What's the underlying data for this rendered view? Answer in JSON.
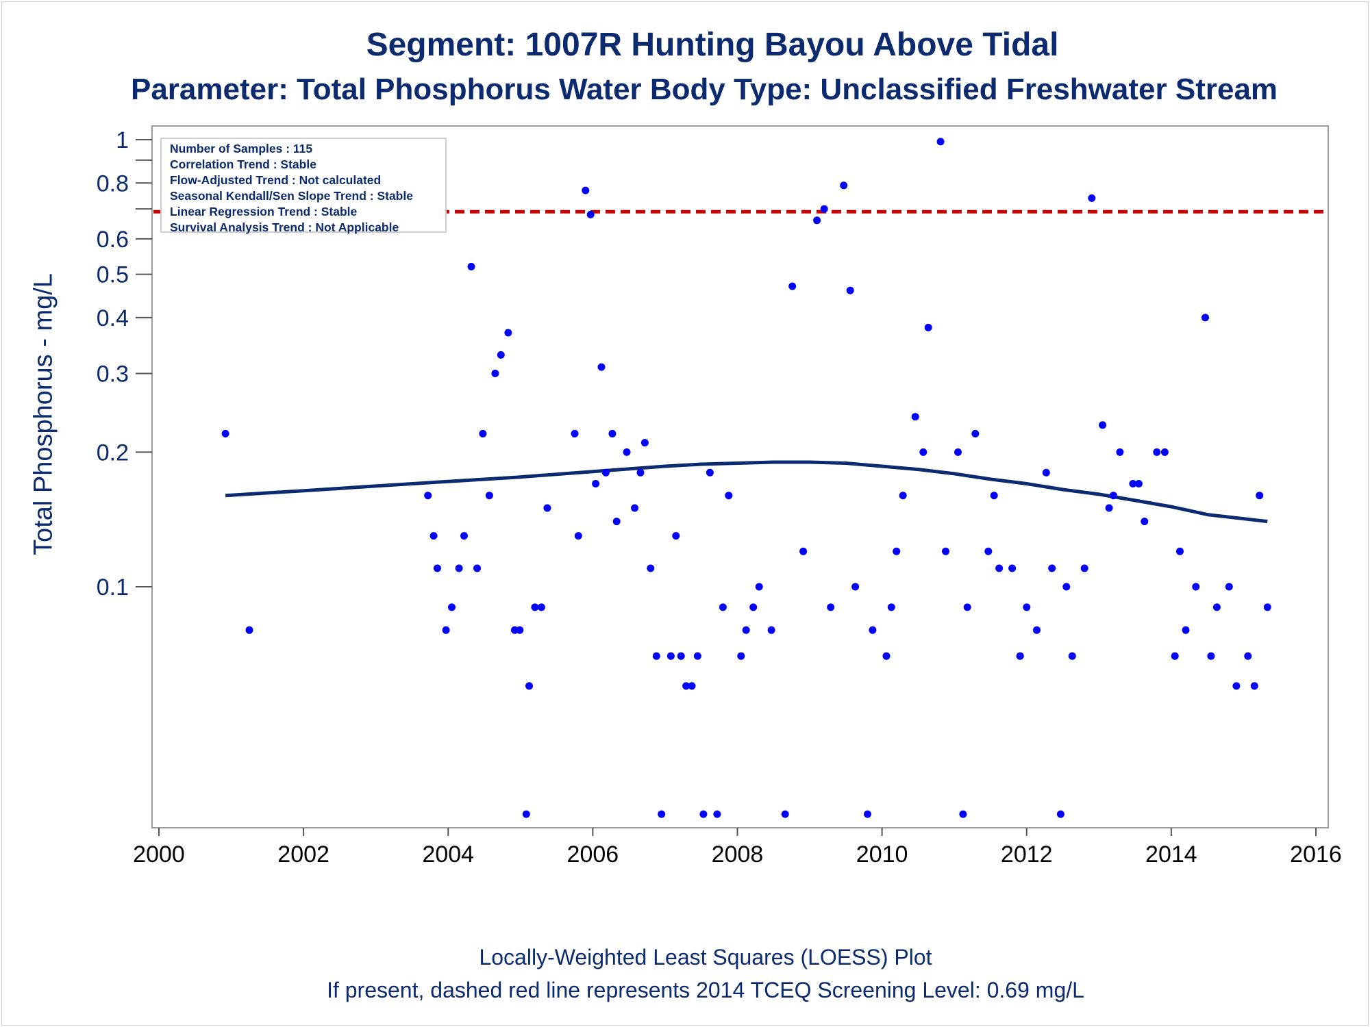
{
  "title": "Segment: 1007R  Hunting Bayou Above Tidal",
  "subtitle": "Parameter: Total Phosphorus   Water Body Type: Unclassified Freshwater Stream",
  "footnote1": "Locally-Weighted Least Squares (LOESS) Plot",
  "footnote2": "If present, dashed red line represents 2014 TCEQ Screening Level: 0.69 mg/L",
  "stats": [
    "Number of Samples : 115",
    "Correlation Trend : Stable",
    "Flow-Adjusted Trend : Not calculated",
    "Seasonal Kendall/Sen Slope Trend : Stable",
    "Linear Regression Trend : Stable",
    "Survival Analysis Trend : Not Applicable"
  ],
  "chart_data": {
    "type": "scatter",
    "title": "Segment: 1007R  Hunting Bayou Above Tidal",
    "subtitle": "Parameter: Total Phosphorus   Water Body Type: Unclassified Freshwater Stream",
    "xlabel": "",
    "ylabel": "Total Phosphorus - mg/L",
    "xlim": [
      2000,
      2016
    ],
    "ylim": [
      0.03,
      1.05
    ],
    "yscale": "log",
    "x_ticks": [
      2000,
      2002,
      2004,
      2006,
      2008,
      2010,
      2012,
      2014,
      2016
    ],
    "y_ticks": [
      0.1,
      0.2,
      0.3,
      0.4,
      0.5,
      0.6,
      0.8,
      1
    ],
    "y_minor_ticks": [
      0.7,
      0.9
    ],
    "legend": "top-left",
    "grid": false,
    "colors": {
      "points": "#0000ff",
      "loess": "#0b2a6f",
      "screening": "#cc0000",
      "text": "#0b2a6f"
    },
    "screening_level": 0.69,
    "points": [
      [
        2000.92,
        0.22
      ],
      [
        2001.25,
        0.08
      ],
      [
        2003.72,
        0.16
      ],
      [
        2003.8,
        0.13
      ],
      [
        2003.85,
        0.11
      ],
      [
        2003.97,
        0.08
      ],
      [
        2004.05,
        0.09
      ],
      [
        2004.15,
        0.11
      ],
      [
        2004.22,
        0.13
      ],
      [
        2004.32,
        0.52
      ],
      [
        2004.4,
        0.11
      ],
      [
        2004.48,
        0.22
      ],
      [
        2004.57,
        0.16
      ],
      [
        2004.65,
        0.3
      ],
      [
        2004.73,
        0.33
      ],
      [
        2004.83,
        0.37
      ],
      [
        2004.92,
        0.08
      ],
      [
        2004.99,
        0.08
      ],
      [
        2005.08,
        0.031
      ],
      [
        2005.12,
        0.06
      ],
      [
        2005.2,
        0.09
      ],
      [
        2005.29,
        0.09
      ],
      [
        2005.37,
        0.15
      ],
      [
        2005.75,
        0.22
      ],
      [
        2005.8,
        0.13
      ],
      [
        2005.9,
        0.77
      ],
      [
        2005.97,
        0.68
      ],
      [
        2006.04,
        0.17
      ],
      [
        2006.12,
        0.31
      ],
      [
        2006.18,
        0.18
      ],
      [
        2006.27,
        0.22
      ],
      [
        2006.33,
        0.14
      ],
      [
        2006.47,
        0.2
      ],
      [
        2006.58,
        0.15
      ],
      [
        2006.66,
        0.18
      ],
      [
        2006.72,
        0.21
      ],
      [
        2006.8,
        0.11
      ],
      [
        2006.88,
        0.07
      ],
      [
        2006.95,
        0.031
      ],
      [
        2007.08,
        0.07
      ],
      [
        2007.15,
        0.13
      ],
      [
        2007.22,
        0.07
      ],
      [
        2007.29,
        0.06
      ],
      [
        2007.37,
        0.06
      ],
      [
        2007.45,
        0.07
      ],
      [
        2007.53,
        0.031
      ],
      [
        2007.62,
        0.18
      ],
      [
        2007.72,
        0.031
      ],
      [
        2007.8,
        0.09
      ],
      [
        2007.88,
        0.16
      ],
      [
        2008.05,
        0.07
      ],
      [
        2008.12,
        0.08
      ],
      [
        2008.22,
        0.09
      ],
      [
        2008.3,
        0.1
      ],
      [
        2008.47,
        0.08
      ],
      [
        2008.66,
        0.031
      ],
      [
        2008.76,
        0.47
      ],
      [
        2008.91,
        0.12
      ],
      [
        2009.1,
        0.66
      ],
      [
        2009.2,
        0.7
      ],
      [
        2009.29,
        0.09
      ],
      [
        2009.47,
        0.79
      ],
      [
        2009.56,
        0.46
      ],
      [
        2009.63,
        0.1
      ],
      [
        2009.8,
        0.031
      ],
      [
        2009.87,
        0.08
      ],
      [
        2010.06,
        0.07
      ],
      [
        2010.13,
        0.09
      ],
      [
        2010.2,
        0.12
      ],
      [
        2010.29,
        0.16
      ],
      [
        2010.46,
        0.24
      ],
      [
        2010.57,
        0.2
      ],
      [
        2010.64,
        0.38
      ],
      [
        2010.81,
        0.99
      ],
      [
        2010.88,
        0.12
      ],
      [
        2011.05,
        0.2
      ],
      [
        2011.12,
        0.031
      ],
      [
        2011.18,
        0.09
      ],
      [
        2011.29,
        0.22
      ],
      [
        2011.47,
        0.12
      ],
      [
        2011.55,
        0.16
      ],
      [
        2011.62,
        0.11
      ],
      [
        2011.8,
        0.11
      ],
      [
        2011.91,
        0.07
      ],
      [
        2012.0,
        0.09
      ],
      [
        2012.14,
        0.08
      ],
      [
        2012.27,
        0.18
      ],
      [
        2012.35,
        0.11
      ],
      [
        2012.47,
        0.031
      ],
      [
        2012.55,
        0.1
      ],
      [
        2012.63,
        0.07
      ],
      [
        2012.8,
        0.11
      ],
      [
        2012.9,
        0.74
      ],
      [
        2013.05,
        0.23
      ],
      [
        2013.14,
        0.15
      ],
      [
        2013.2,
        0.16
      ],
      [
        2013.29,
        0.2
      ],
      [
        2013.47,
        0.17
      ],
      [
        2013.55,
        0.17
      ],
      [
        2013.63,
        0.14
      ],
      [
        2013.8,
        0.2
      ],
      [
        2013.91,
        0.2
      ],
      [
        2014.05,
        0.07
      ],
      [
        2014.12,
        0.12
      ],
      [
        2014.2,
        0.08
      ],
      [
        2014.34,
        0.1
      ],
      [
        2014.47,
        0.4
      ],
      [
        2014.55,
        0.07
      ],
      [
        2014.63,
        0.09
      ],
      [
        2014.8,
        0.1
      ],
      [
        2014.9,
        0.06
      ],
      [
        2015.06,
        0.07
      ],
      [
        2015.15,
        0.06
      ],
      [
        2015.22,
        0.16
      ],
      [
        2015.33,
        0.09
      ]
    ],
    "loess": [
      [
        2000.92,
        0.16
      ],
      [
        2002.0,
        0.164
      ],
      [
        2003.0,
        0.168
      ],
      [
        2004.0,
        0.172
      ],
      [
        2005.0,
        0.176
      ],
      [
        2006.0,
        0.181
      ],
      [
        2007.0,
        0.186
      ],
      [
        2007.5,
        0.188
      ],
      [
        2008.0,
        0.189
      ],
      [
        2008.5,
        0.19
      ],
      [
        2009.0,
        0.19
      ],
      [
        2009.5,
        0.189
      ],
      [
        2010.0,
        0.186
      ],
      [
        2010.5,
        0.183
      ],
      [
        2011.0,
        0.179
      ],
      [
        2011.5,
        0.174
      ],
      [
        2012.0,
        0.17
      ],
      [
        2012.5,
        0.165
      ],
      [
        2013.0,
        0.161
      ],
      [
        2013.5,
        0.156
      ],
      [
        2014.0,
        0.151
      ],
      [
        2014.5,
        0.145
      ],
      [
        2015.33,
        0.14
      ]
    ]
  }
}
